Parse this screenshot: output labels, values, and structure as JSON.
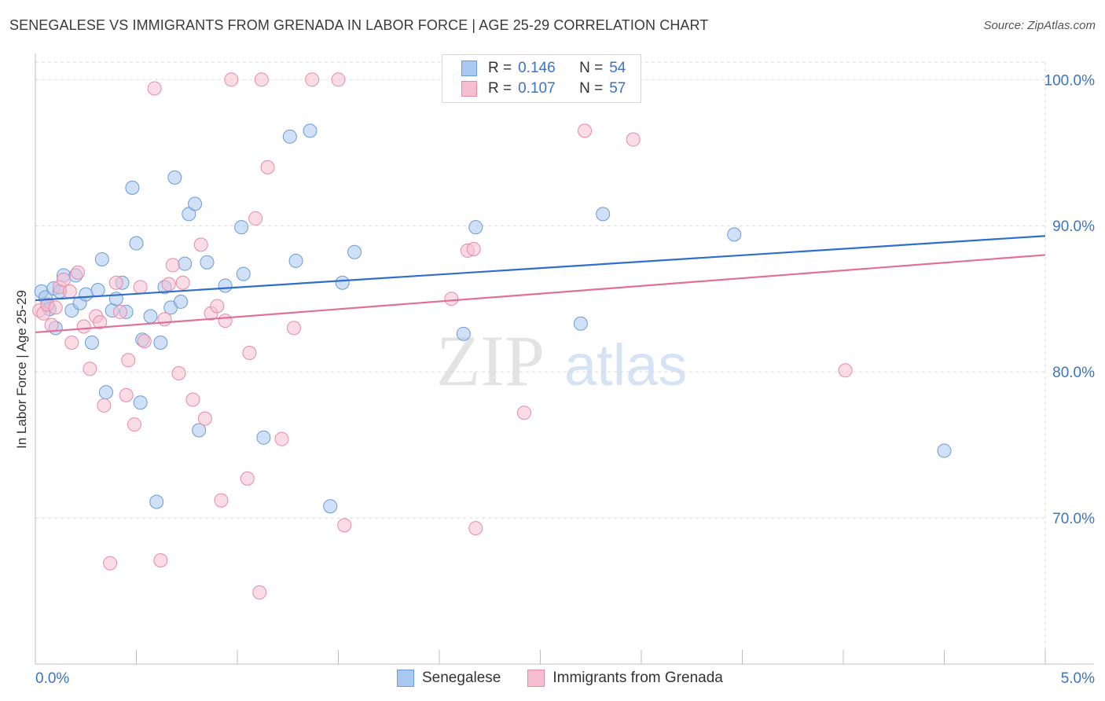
{
  "header": {
    "title": "SENEGALESE VS IMMIGRANTS FROM GRENADA IN LABOR FORCE | AGE 25-29 CORRELATION CHART",
    "source": "Source: ZipAtlas.com"
  },
  "watermark": {
    "zip": "ZIP",
    "atlas": "atlas"
  },
  "legend": {
    "rows": [
      {
        "r_label": "R =",
        "r_value": "0.146",
        "n_label": "N =",
        "n_value": "54"
      },
      {
        "r_label": "R =",
        "r_value": "0.107",
        "n_label": "N =",
        "n_value": "57"
      }
    ]
  },
  "bottom_legend": {
    "items": [
      "Senegalese",
      "Immigrants from Grenada"
    ]
  },
  "colors": {
    "blue_fill": "#a9c9f0",
    "blue_stroke": "#6a9ad6",
    "blue_line": "#2f6fcb",
    "pink_fill": "#f6bfd0",
    "pink_stroke": "#e68aa8",
    "pink_line": "#e07099",
    "tick_label": "#3a74c4",
    "grid": "#d9d9d9"
  },
  "chart_data": {
    "type": "scatter",
    "title": "SENEGALESE VS IMMIGRANTS FROM GRENADA IN LABOR FORCE | AGE 25-29 CORRELATION CHART",
    "xlabel": "",
    "ylabel": "In Labor Force | Age 25-29",
    "xlim": [
      0,
      5
    ],
    "ylim": [
      60,
      101.2
    ],
    "x_tick_labels": [
      "0.0%",
      "5.0%"
    ],
    "y_ticks": [
      70,
      80,
      90,
      100
    ],
    "y_tick_labels": [
      "70.0%",
      "80.0%",
      "90.0%",
      "100.0%"
    ],
    "grid": true,
    "legend_position": "top-center",
    "series": [
      {
        "name": "Senegalese",
        "r": 0.146,
        "n": 54,
        "trend": {
          "x": [
            0,
            5
          ],
          "y": [
            84.9,
            89.3
          ]
        },
        "points": [
          [
            0.03,
            85.5
          ],
          [
            0.05,
            85.1
          ],
          [
            0.06,
            84.6
          ],
          [
            0.07,
            84.3
          ],
          [
            0.09,
            85.7
          ],
          [
            0.1,
            83.0
          ],
          [
            0.12,
            85.5
          ],
          [
            0.14,
            86.6
          ],
          [
            0.18,
            84.2
          ],
          [
            0.2,
            86.6
          ],
          [
            0.22,
            84.7
          ],
          [
            0.25,
            85.3
          ],
          [
            0.28,
            82.0
          ],
          [
            0.31,
            85.6
          ],
          [
            0.33,
            87.7
          ],
          [
            0.35,
            78.6
          ],
          [
            0.38,
            84.2
          ],
          [
            0.4,
            85.0
          ],
          [
            0.43,
            86.1
          ],
          [
            0.45,
            84.1
          ],
          [
            0.48,
            92.6
          ],
          [
            0.5,
            88.8
          ],
          [
            0.52,
            77.9
          ],
          [
            0.53,
            82.2
          ],
          [
            0.57,
            83.8
          ],
          [
            0.6,
            71.1
          ],
          [
            0.62,
            82.0
          ],
          [
            0.64,
            85.8
          ],
          [
            0.67,
            84.4
          ],
          [
            0.69,
            93.3
          ],
          [
            0.72,
            84.8
          ],
          [
            0.74,
            87.4
          ],
          [
            0.76,
            90.8
          ],
          [
            0.79,
            91.5
          ],
          [
            0.81,
            76.0
          ],
          [
            0.85,
            87.5
          ],
          [
            0.94,
            85.9
          ],
          [
            1.02,
            89.9
          ],
          [
            1.03,
            86.7
          ],
          [
            1.13,
            75.5
          ],
          [
            1.26,
            96.1
          ],
          [
            1.29,
            87.6
          ],
          [
            1.36,
            96.5
          ],
          [
            1.46,
            70.8
          ],
          [
            1.52,
            86.1
          ],
          [
            1.58,
            88.2
          ],
          [
            2.1,
            100.1
          ],
          [
            2.12,
            82.6
          ],
          [
            2.18,
            89.9
          ],
          [
            2.7,
            83.3
          ],
          [
            2.81,
            90.8
          ],
          [
            2.87,
            100.0
          ],
          [
            3.46,
            89.4
          ],
          [
            4.5,
            74.6
          ]
        ]
      },
      {
        "name": "Immigrants from Grenada",
        "r": 0.107,
        "n": 57,
        "trend": {
          "x": [
            0,
            5
          ],
          "y": [
            82.7,
            88.0
          ]
        },
        "points": [
          [
            0.02,
            84.2
          ],
          [
            0.04,
            84.0
          ],
          [
            0.06,
            84.6
          ],
          [
            0.08,
            83.2
          ],
          [
            0.1,
            84.4
          ],
          [
            0.12,
            85.8
          ],
          [
            0.14,
            86.3
          ],
          [
            0.17,
            85.5
          ],
          [
            0.18,
            82.0
          ],
          [
            0.21,
            86.8
          ],
          [
            0.24,
            83.1
          ],
          [
            0.27,
            80.2
          ],
          [
            0.3,
            83.8
          ],
          [
            0.32,
            83.4
          ],
          [
            0.34,
            77.7
          ],
          [
            0.37,
            66.9
          ],
          [
            0.4,
            86.1
          ],
          [
            0.42,
            84.1
          ],
          [
            0.45,
            78.4
          ],
          [
            0.46,
            80.8
          ],
          [
            0.49,
            76.4
          ],
          [
            0.52,
            85.8
          ],
          [
            0.54,
            82.1
          ],
          [
            0.59,
            99.4
          ],
          [
            0.62,
            67.1
          ],
          [
            0.64,
            83.6
          ],
          [
            0.66,
            86.0
          ],
          [
            0.68,
            87.3
          ],
          [
            0.71,
            79.9
          ],
          [
            0.73,
            86.1
          ],
          [
            0.78,
            78.1
          ],
          [
            0.82,
            88.7
          ],
          [
            0.84,
            76.8
          ],
          [
            0.87,
            84.0
          ],
          [
            0.9,
            84.5
          ],
          [
            0.92,
            71.2
          ],
          [
            0.94,
            83.5
          ],
          [
            0.97,
            100.0
          ],
          [
            1.05,
            72.7
          ],
          [
            1.06,
            81.3
          ],
          [
            1.09,
            90.5
          ],
          [
            1.11,
            64.9
          ],
          [
            1.12,
            100.0
          ],
          [
            1.15,
            94.0
          ],
          [
            1.22,
            75.4
          ],
          [
            1.28,
            83.0
          ],
          [
            1.37,
            100.0
          ],
          [
            1.5,
            100.0
          ],
          [
            1.53,
            69.5
          ],
          [
            2.06,
            85.0
          ],
          [
            2.14,
            88.3
          ],
          [
            2.17,
            88.4
          ],
          [
            2.18,
            69.3
          ],
          [
            2.42,
            77.2
          ],
          [
            2.72,
            96.5
          ],
          [
            2.96,
            95.9
          ],
          [
            4.01,
            80.1
          ]
        ]
      }
    ]
  }
}
